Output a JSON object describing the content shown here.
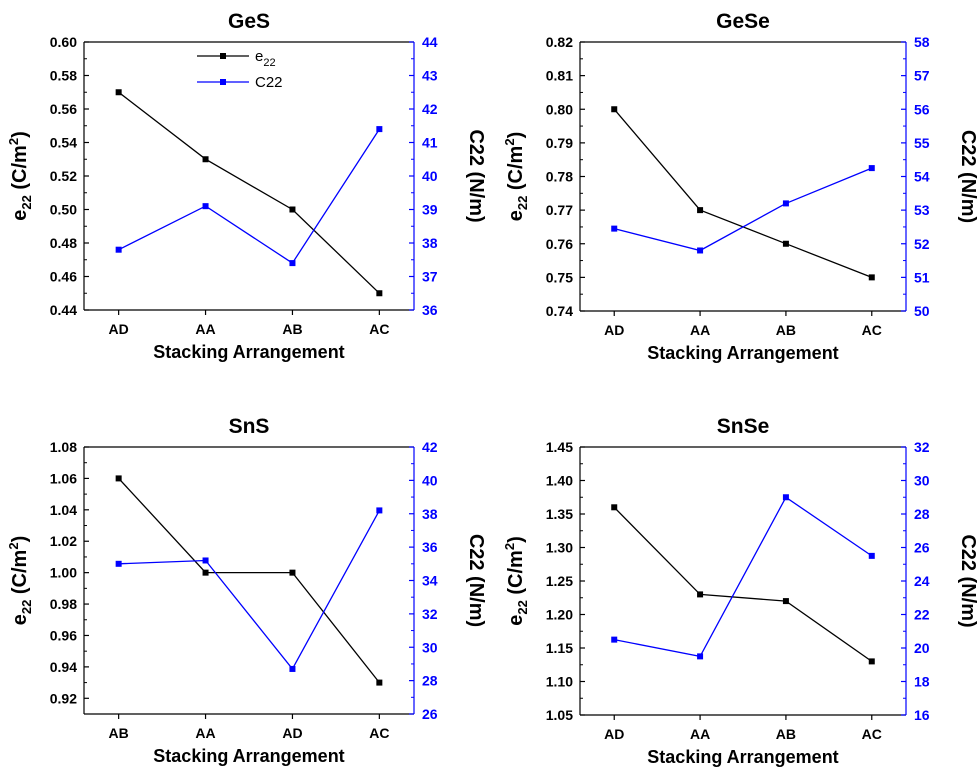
{
  "chart_data": [
    {
      "type": "line",
      "title": "GeS",
      "xlabel": "Stacking Arrangement",
      "ylabel_left": {
        "base": "e",
        "sub": "22",
        "rest": " (C/m",
        "sup": "2",
        "end": ")"
      },
      "ylabel_right": "C22 (N/m)",
      "categories": [
        "AD",
        "AA",
        "AB",
        "AC"
      ],
      "ylim_left": [
        0.44,
        0.6
      ],
      "yticks_left": [
        "0.44",
        "0.46",
        "0.48",
        "0.50",
        "0.52",
        "0.54",
        "0.56",
        "0.58",
        "0.60"
      ],
      "ylim_right": [
        36,
        44
      ],
      "yticks_right": [
        "36",
        "37",
        "38",
        "39",
        "40",
        "41",
        "42",
        "43",
        "44"
      ],
      "series": [
        {
          "name": "e22",
          "axis": "left",
          "color": "#000000",
          "values": [
            0.57,
            0.53,
            0.5,
            0.45
          ]
        },
        {
          "name": "C22",
          "axis": "right",
          "color": "#0000ff",
          "values": [
            37.8,
            39.1,
            37.4,
            41.4
          ]
        }
      ],
      "legend": {
        "position": "top-left",
        "entries": [
          {
            "base": "e",
            "sub": "22",
            "color": "#000000"
          },
          {
            "base": "C22",
            "sub": "",
            "color": "#0000ff"
          }
        ]
      }
    },
    {
      "type": "line",
      "title": "GeSe",
      "xlabel": "Stacking Arrangement",
      "ylabel_left": {
        "base": "e",
        "sub": "22",
        "rest": " (C/m",
        "sup": "2",
        "end": ")"
      },
      "ylabel_right": "C22 (N/m)",
      "categories": [
        "AD",
        "AA",
        "AB",
        "AC"
      ],
      "ylim_left": [
        0.74,
        0.82
      ],
      "yticks_left": [
        "0.74",
        "0.75",
        "0.76",
        "0.77",
        "0.78",
        "0.79",
        "0.80",
        "0.81",
        "0.82"
      ],
      "ylim_right": [
        50,
        58
      ],
      "yticks_right": [
        "50",
        "51",
        "52",
        "53",
        "54",
        "55",
        "56",
        "57",
        "58"
      ],
      "series": [
        {
          "name": "e22",
          "axis": "left",
          "color": "#000000",
          "values": [
            0.8,
            0.77,
            0.76,
            0.75
          ]
        },
        {
          "name": "C22",
          "axis": "right",
          "color": "#0000ff",
          "values": [
            52.45,
            51.8,
            53.2,
            54.25
          ]
        }
      ]
    },
    {
      "type": "line",
      "title": "SnS",
      "xlabel": "Stacking Arrangement",
      "ylabel_left": {
        "base": "e",
        "sub": "22",
        "rest": " (C/m",
        "sup": "2",
        "end": ")"
      },
      "ylabel_right": "C22 (N/m)",
      "categories": [
        "AB",
        "AA",
        "AD",
        "AC"
      ],
      "ylim_left": [
        0.91,
        1.08
      ],
      "yticks_left": [
        "0.92",
        "0.94",
        "0.96",
        "0.98",
        "1.00",
        "1.02",
        "1.04",
        "1.06",
        "1.08"
      ],
      "ylim_right": [
        26,
        42
      ],
      "yticks_right": [
        "26",
        "28",
        "30",
        "32",
        "34",
        "36",
        "38",
        "40",
        "42"
      ],
      "series": [
        {
          "name": "e22",
          "axis": "left",
          "color": "#000000",
          "values": [
            1.06,
            1.0,
            1.0,
            0.93
          ]
        },
        {
          "name": "C22",
          "axis": "right",
          "color": "#0000ff",
          "values": [
            35.0,
            35.2,
            28.7,
            38.2
          ]
        }
      ]
    },
    {
      "type": "line",
      "title": "SnSe",
      "xlabel": "Stacking Arrangement",
      "ylabel_left": {
        "base": "e",
        "sub": "22",
        "rest": " (C/m",
        "sup": "2",
        "end": ")"
      },
      "ylabel_right": "C22 (N/m)",
      "categories": [
        "AD",
        "AA",
        "AB",
        "AC"
      ],
      "ylim_left": [
        1.05,
        1.45
      ],
      "yticks_left": [
        "1.05",
        "1.10",
        "1.15",
        "1.20",
        "1.25",
        "1.30",
        "1.35",
        "1.40",
        "1.45"
      ],
      "ylim_right": [
        16,
        32
      ],
      "yticks_right": [
        "16",
        "18",
        "20",
        "22",
        "24",
        "26",
        "28",
        "30",
        "32"
      ],
      "series": [
        {
          "name": "e22",
          "axis": "left",
          "color": "#000000",
          "values": [
            1.36,
            1.23,
            1.22,
            1.13
          ]
        },
        {
          "name": "C22",
          "axis": "right",
          "color": "#0000ff",
          "values": [
            20.5,
            19.5,
            29.0,
            25.5
          ]
        }
      ]
    }
  ]
}
